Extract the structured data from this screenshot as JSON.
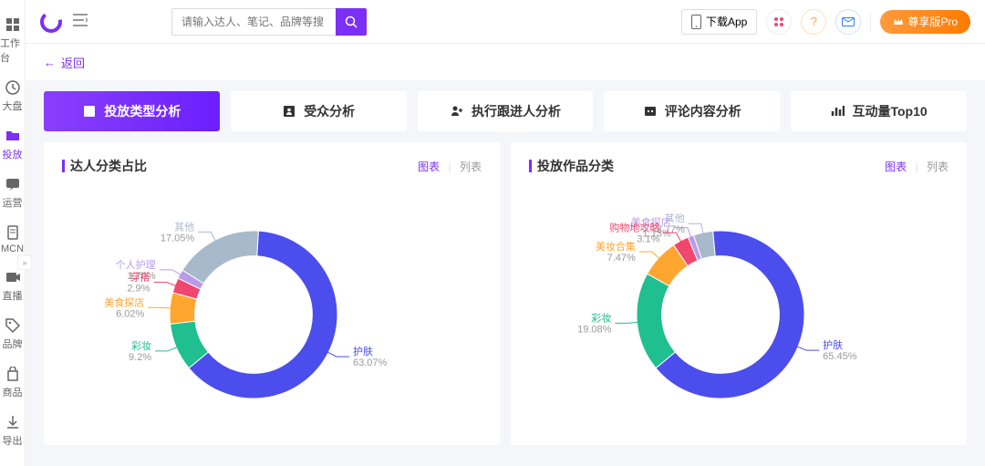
{
  "topbar": {
    "search_placeholder": "请输入达人、笔记、品牌等搜",
    "download_label": "下载App",
    "pro_label": "尊享版Pro"
  },
  "sidebar": {
    "items": [
      {
        "label": "工作台",
        "icon": "grid"
      },
      {
        "label": "大盘",
        "icon": "clock"
      },
      {
        "label": "投放",
        "icon": "folder",
        "active": true
      },
      {
        "label": "运营",
        "icon": "chat"
      },
      {
        "label": "MCN",
        "icon": "badge"
      },
      {
        "label": "直播",
        "icon": "video"
      },
      {
        "label": "品牌",
        "icon": "tag"
      },
      {
        "label": "商品",
        "icon": "bag"
      },
      {
        "label": "导出",
        "icon": "download"
      }
    ]
  },
  "back_label": "返回",
  "tabs": [
    {
      "label": "投放类型分析",
      "icon": "chart",
      "active": true
    },
    {
      "label": "受众分析",
      "icon": "person"
    },
    {
      "label": "执行跟进人分析",
      "icon": "person-plus"
    },
    {
      "label": "评论内容分析",
      "icon": "quote"
    },
    {
      "label": "互动量Top10",
      "icon": "bars"
    }
  ],
  "view_toggle": {
    "chart": "图表",
    "list": "列表"
  },
  "chart_colors": {
    "bg": "#ffffff",
    "ring_thickness": 0.3
  },
  "chart1": {
    "title": "达人分类占比",
    "type": "donut",
    "slices": [
      {
        "label": "护肤",
        "value": 63.07,
        "color": "#4b4ded"
      },
      {
        "label": "其他",
        "value": 17.05,
        "color": "#a8b9cc"
      },
      {
        "label": "个人护理",
        "value": 1.76,
        "color": "#b99be8"
      },
      {
        "label": "穿搭",
        "value": 2.9,
        "color": "#ef476f"
      },
      {
        "label": "美食探店",
        "value": 6.02,
        "color": "#ffa630"
      },
      {
        "label": "彩妆",
        "value": 9.2,
        "color": "#1fbf8f"
      }
    ]
  },
  "chart2": {
    "title": "投放作品分类",
    "type": "donut",
    "slices": [
      {
        "label": "护肤",
        "value": 65.45,
        "color": "#4b4ded"
      },
      {
        "label": "其他",
        "value": 3.77,
        "color": "#a8b9cc"
      },
      {
        "label": "美食探店",
        "value": 1.13,
        "color": "#b99be8"
      },
      {
        "label": "购物地攻略",
        "value": 3.1,
        "color": "#ef476f"
      },
      {
        "label": "美妆合集",
        "value": 7.47,
        "color": "#ffa630"
      },
      {
        "label": "彩妆",
        "value": 19.08,
        "color": "#1fbf8f"
      }
    ]
  }
}
